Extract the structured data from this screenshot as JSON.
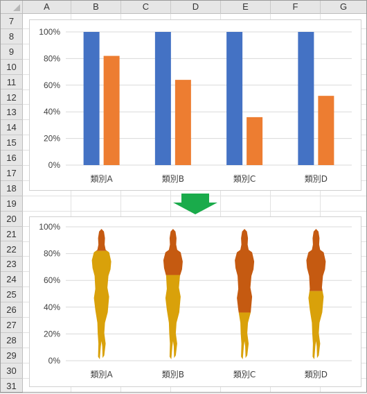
{
  "sheet": {
    "columns": [
      "A",
      "B",
      "C",
      "D",
      "E",
      "F",
      "G"
    ],
    "rows": [
      "7",
      "8",
      "9",
      "10",
      "11",
      "12",
      "13",
      "14",
      "15",
      "16",
      "17",
      "18",
      "19",
      "20",
      "21",
      "22",
      "23",
      "24",
      "25",
      "26",
      "27",
      "28",
      "29",
      "30",
      "31"
    ]
  },
  "colors": {
    "bar_total": "#4472c4",
    "bar_value": "#ed7d31",
    "figure_top": "#c55a11",
    "figure_fill": "#d9a10a",
    "arrow": "#1aab4b",
    "gridline": "#d9d9d9",
    "axis_text": "#404040"
  },
  "chart_data": [
    {
      "type": "bar",
      "categories": [
        "類別A",
        "類別B",
        "類別C",
        "類別D"
      ],
      "series": [
        {
          "values": [
            100,
            100,
            100,
            100
          ]
        },
        {
          "values": [
            82,
            64,
            36,
            52
          ]
        }
      ],
      "yticks": [
        "0%",
        "20%",
        "40%",
        "60%",
        "80%",
        "100%"
      ],
      "ylim": [
        0,
        100
      ],
      "grid": true
    },
    {
      "type": "bar",
      "style": "pictogram-silhouette",
      "categories": [
        "類別A",
        "類別B",
        "類別C",
        "類別D"
      ],
      "series": [
        {
          "values": [
            82,
            64,
            36,
            52
          ]
        }
      ],
      "yticks": [
        "0%",
        "20%",
        "40%",
        "60%",
        "80%",
        "100%"
      ],
      "ylim": [
        0,
        100
      ],
      "grid": true
    }
  ],
  "arrow_icon": "down-arrow-icon"
}
